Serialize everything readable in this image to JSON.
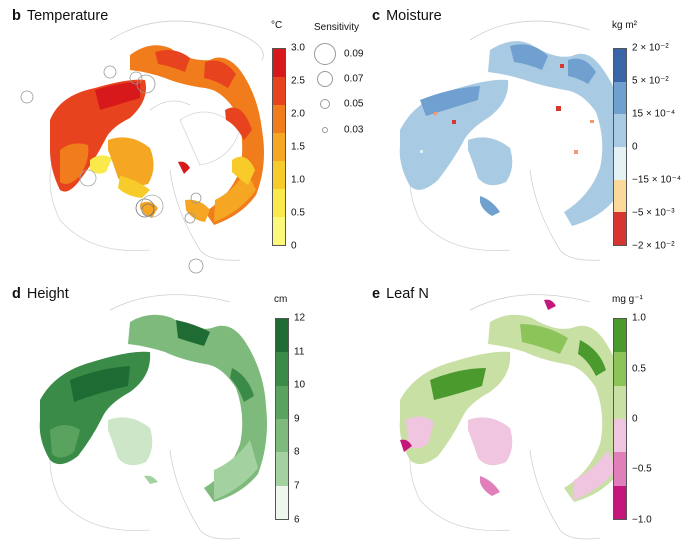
{
  "panels": {
    "b": {
      "letter": "b",
      "title": "Temperature",
      "unit": "°C",
      "ticks": [
        "3.0",
        "2.5",
        "2.0",
        "1.5",
        "1.0",
        "0.5",
        "0"
      ],
      "colors": [
        "#d7191c",
        "#e8431f",
        "#f07c1c",
        "#f5a623",
        "#f7cc2a",
        "#f9e94a",
        "#fcf97a"
      ],
      "sensitivity": {
        "title": "Sensitivity",
        "labels": [
          "0.09",
          "0.07",
          "0.05",
          "0.03"
        ]
      }
    },
    "c": {
      "letter": "c",
      "title": "Moisture",
      "unit": "kg m²",
      "ticks": [
        "2 × 10⁻²",
        "5 × 10⁻²",
        "15 × 10⁻⁴",
        "0",
        "−15 × 10⁻⁴",
        "−5 × 10⁻³",
        "−2 × 10⁻²"
      ],
      "colors": [
        "#3a66a8",
        "#6fa0cf",
        "#a8cbe3",
        "#e4f2f6",
        "#fbd99b",
        "#f29a6b",
        "#d7352f"
      ]
    },
    "d": {
      "letter": "d",
      "title": "Height",
      "unit": "cm",
      "ticks": [
        "12",
        "11",
        "10",
        "9",
        "8",
        "7",
        "6"
      ],
      "colors": [
        "#1e6b34",
        "#3a8b48",
        "#5aa35e",
        "#7dba7c",
        "#a4d1a0",
        "#cde6c8",
        "#eef7ec"
      ]
    },
    "e": {
      "letter": "e",
      "title": "Leaf N",
      "unit": "mg g⁻¹",
      "ticks": [
        "1.0",
        "0.5",
        "0",
        "−0.5",
        "−1.0"
      ],
      "colors": [
        "#4a9a2e",
        "#8cc45a",
        "#c8e0a4",
        "#f0c5e0",
        "#e07fba",
        "#c5167c"
      ]
    }
  }
}
